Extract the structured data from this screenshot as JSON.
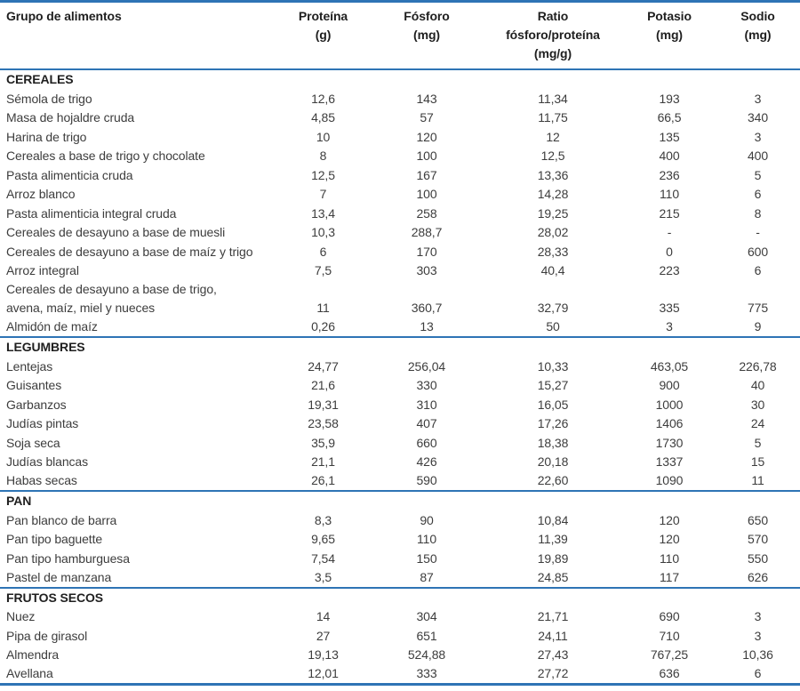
{
  "colors": {
    "rule_blue": "#2e74b5",
    "body_text": "#3d3d3d",
    "header_text": "#1f1f1f"
  },
  "table": {
    "columns": [
      {
        "label": "Grupo de alimentos"
      },
      {
        "label": "Proteína",
        "sub": "(g)"
      },
      {
        "label": "Fósforo",
        "sub": "(mg)"
      },
      {
        "label": "Ratio",
        "sub": "fósforo/proteína",
        "sub2": "(mg/g)"
      },
      {
        "label": "Potasio",
        "sub": "(mg)"
      },
      {
        "label": "Sodio",
        "sub": "(mg)"
      }
    ],
    "sections": [
      {
        "name": "CEREALES",
        "rows": [
          {
            "name": "Sémola de trigo",
            "values": [
              "12,6",
              "143",
              "11,34",
              "193",
              "3"
            ]
          },
          {
            "name": "Masa de hojaldre cruda",
            "values": [
              "4,85",
              "57",
              "11,75",
              "66,5",
              "340"
            ]
          },
          {
            "name": "Harina de trigo",
            "values": [
              "10",
              "120",
              "12",
              "135",
              "3"
            ]
          },
          {
            "name": "Cereales a base de trigo y chocolate",
            "values": [
              "8",
              "100",
              "12,5",
              "400",
              "400"
            ]
          },
          {
            "name": "Pasta alimenticia cruda",
            "values": [
              "12,5",
              "167",
              "13,36",
              "236",
              "5"
            ]
          },
          {
            "name": "Arroz blanco",
            "values": [
              "7",
              "100",
              "14,28",
              "110",
              "6"
            ]
          },
          {
            "name": "Pasta alimenticia integral cruda",
            "values": [
              "13,4",
              "258",
              "19,25",
              "215",
              "8"
            ]
          },
          {
            "name": "Cereales de desayuno a base de muesli",
            "values": [
              "10,3",
              "288,7",
              "28,02",
              "-",
              "-"
            ]
          },
          {
            "name": "Cereales de desayuno a base de maíz y trigo",
            "values": [
              "6",
              "170",
              "28,33",
              "0",
              "600"
            ]
          },
          {
            "name": "Arroz integral",
            "values": [
              "7,5",
              "303",
              "40,4",
              "223",
              "6"
            ]
          },
          {
            "name": "Cereales de desayuno a base de trigo,",
            "name2": "avena, maíz, miel y nueces",
            "values": [
              "11",
              "360,7",
              "32,79",
              "335",
              "775"
            ]
          },
          {
            "name": "Almidón de maíz",
            "values": [
              "0,26",
              "13",
              "50",
              "3",
              "9"
            ]
          }
        ]
      },
      {
        "name": "LEGUMBRES",
        "rows": [
          {
            "name": "Lentejas",
            "values": [
              "24,77",
              "256,04",
              "10,33",
              "463,05",
              "226,78"
            ]
          },
          {
            "name": "Guisantes",
            "values": [
              "21,6",
              "330",
              "15,27",
              "900",
              "40"
            ]
          },
          {
            "name": "Garbanzos",
            "values": [
              "19,31",
              "310",
              "16,05",
              "1000",
              "30"
            ]
          },
          {
            "name": "Judías pintas",
            "values": [
              "23,58",
              "407",
              "17,26",
              "1406",
              "24"
            ]
          },
          {
            "name": "Soja seca",
            "values": [
              "35,9",
              "660",
              "18,38",
              "1730",
              "5"
            ]
          },
          {
            "name": "Judías blancas",
            "values": [
              "21,1",
              "426",
              "20,18",
              "1337",
              "15"
            ]
          },
          {
            "name": "Habas secas",
            "values": [
              "26,1",
              "590",
              "22,60",
              "1090",
              "11"
            ]
          }
        ]
      },
      {
        "name": "PAN",
        "rows": [
          {
            "name": "Pan blanco de barra",
            "values": [
              "8,3",
              "90",
              "10,84",
              "120",
              "650"
            ]
          },
          {
            "name": "Pan tipo baguette",
            "values": [
              "9,65",
              "110",
              "11,39",
              "120",
              "570"
            ]
          },
          {
            "name": "Pan tipo hamburguesa",
            "values": [
              "7,54",
              "150",
              "19,89",
              "110",
              "550"
            ]
          },
          {
            "name": "Pastel de manzana",
            "values": [
              "3,5",
              "87",
              "24,85",
              "117",
              "626"
            ]
          }
        ]
      },
      {
        "name": "FRUTOS SECOS",
        "rows": [
          {
            "name": "Nuez",
            "values": [
              "14",
              "304",
              "21,71",
              "690",
              "3"
            ]
          },
          {
            "name": "Pipa de girasol",
            "values": [
              "27",
              "651",
              "24,11",
              "710",
              "3"
            ]
          },
          {
            "name": "Almendra",
            "values": [
              "19,13",
              "524,88",
              "27,43",
              "767,25",
              "10,36"
            ]
          },
          {
            "name": "Avellana",
            "values": [
              "12,01",
              "333",
              "27,72",
              "636",
              "6"
            ]
          }
        ]
      }
    ]
  }
}
